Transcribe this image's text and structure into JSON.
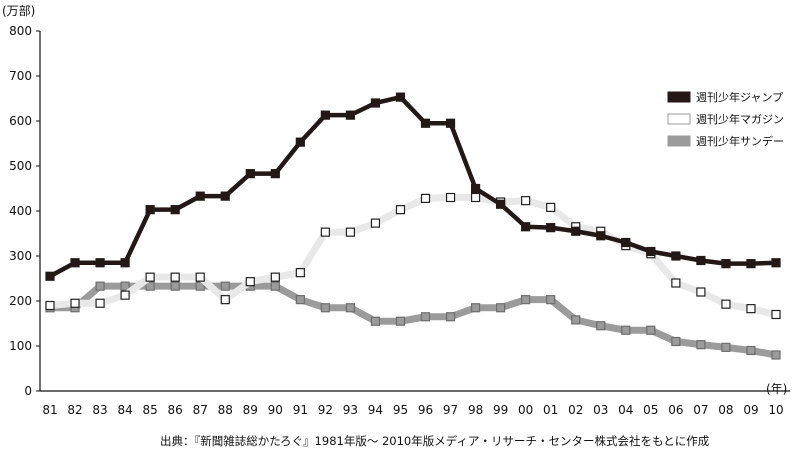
{
  "chart_data": {
    "type": "line",
    "y_unit": "(万部)",
    "x_unit": "(年)",
    "categories": [
      "81",
      "82",
      "83",
      "84",
      "85",
      "86",
      "87",
      "88",
      "89",
      "90",
      "91",
      "92",
      "93",
      "94",
      "95",
      "96",
      "97",
      "98",
      "99",
      "00",
      "01",
      "02",
      "03",
      "04",
      "05",
      "06",
      "07",
      "08",
      "09",
      "10"
    ],
    "ylim": [
      0,
      800
    ],
    "yticks": [
      0,
      100,
      200,
      300,
      400,
      500,
      600,
      700,
      800
    ],
    "grid": false,
    "legend_position": "right",
    "series": [
      {
        "name": "週刊少年ジャンプ",
        "color": "#231815",
        "marker_fill": "#231815",
        "values": [
          255,
          285,
          285,
          285,
          403,
          403,
          433,
          433,
          483,
          483,
          553,
          613,
          613,
          640,
          653,
          595,
          595,
          450,
          415,
          365,
          363,
          355,
          345,
          330,
          310,
          300,
          290,
          283,
          283,
          285
        ]
      },
      {
        "name": "週刊少年マガジン",
        "color": "#e8e8e8",
        "marker_fill": "#ffffff",
        "values": [
          190,
          195,
          195,
          213,
          253,
          253,
          253,
          203,
          243,
          253,
          263,
          353,
          353,
          373,
          403,
          428,
          430,
          430,
          420,
          423,
          408,
          365,
          355,
          323,
          305,
          240,
          220,
          193,
          183,
          170
        ]
      },
      {
        "name": "週刊少年サンデー",
        "color": "#9b9b9b",
        "marker_fill": "#9b9b9b",
        "values": [
          185,
          185,
          233,
          233,
          233,
          233,
          233,
          233,
          233,
          233,
          203,
          185,
          185,
          155,
          155,
          165,
          165,
          185,
          185,
          203,
          203,
          158,
          145,
          135,
          135,
          110,
          103,
          97,
          90,
          80
        ]
      }
    ]
  },
  "source_note": "出典：『新聞雑誌総かたろぐ』1981年版〜 2010年版メディア・リサーチ・センター株式会社をもとに作成"
}
